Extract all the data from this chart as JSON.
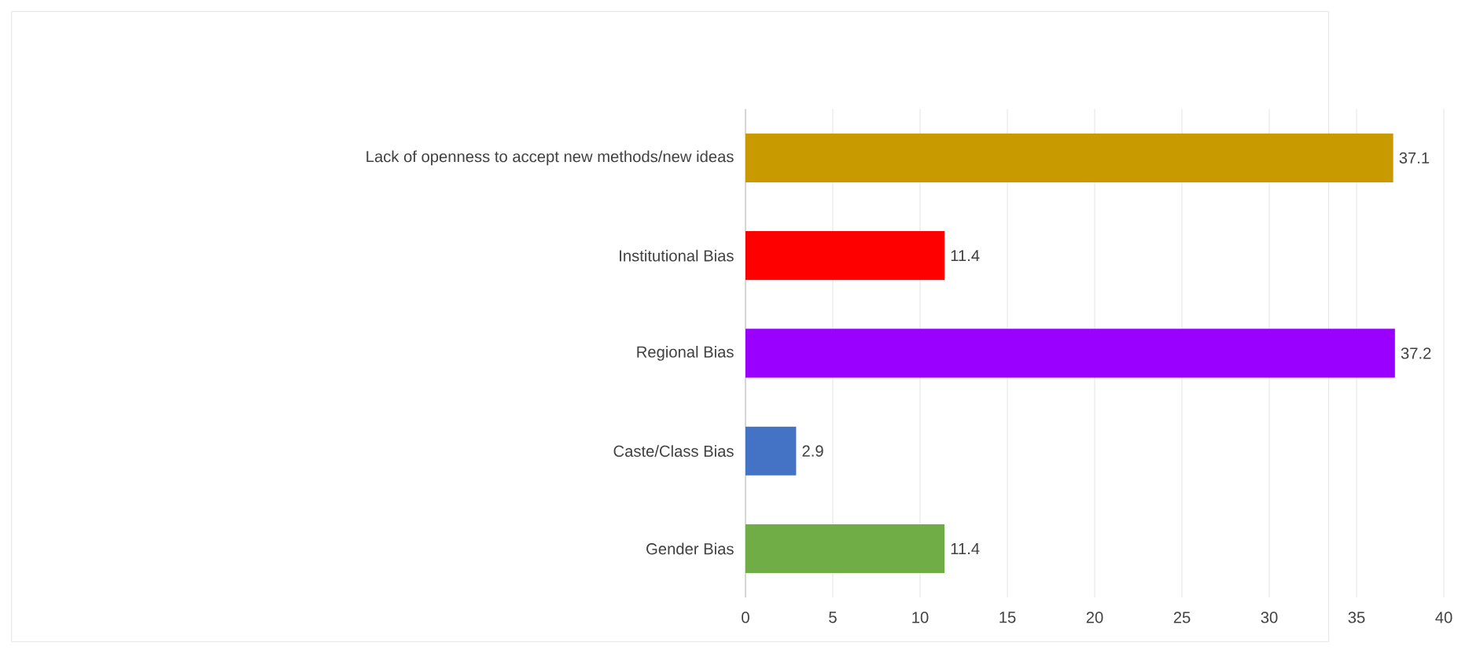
{
  "chart_data": {
    "type": "bar",
    "orientation": "horizontal",
    "categories": [
      "Lack of openness to accept new methods/new ideas",
      "Institutional Bias",
      "Regional Bias",
      "Caste/Class Bias",
      "Gender Bias"
    ],
    "values": [
      37.1,
      11.4,
      37.2,
      2.9,
      11.4
    ],
    "colors": [
      "#c99a00",
      "#ff0000",
      "#9900ff",
      "#4472c4",
      "#70ad47"
    ],
    "xlim": [
      0,
      40
    ],
    "xticks": [
      0,
      5,
      10,
      15,
      20,
      25,
      30,
      35,
      40
    ],
    "grid": "x",
    "data_labels": true
  }
}
